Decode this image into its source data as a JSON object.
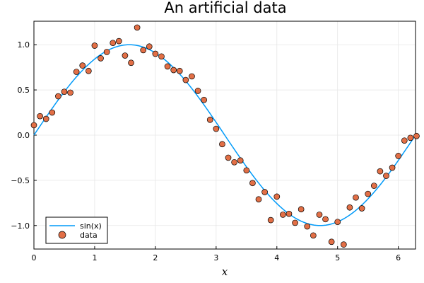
{
  "chart_data": {
    "type": "scatter",
    "title": "An artificial data",
    "xlabel": "x",
    "ylabel": "",
    "xlim": [
      0,
      6.283
    ],
    "ylim": [
      -1.26,
      1.26
    ],
    "xticks": [
      0,
      1,
      2,
      3,
      4,
      5,
      6
    ],
    "yticks": [
      -1.0,
      -0.5,
      0.0,
      0.5,
      1.0
    ],
    "xtick_labels": [
      "0",
      "1",
      "2",
      "3",
      "4",
      "5",
      "6"
    ],
    "ytick_labels": [
      "−1.0",
      "−0.5",
      "0.0",
      "0.5",
      "1.0"
    ],
    "grid": true,
    "legend_position": "bottom-left",
    "series": [
      {
        "name": "sin(x)",
        "kind": "line",
        "color": "#009af9",
        "function": "sin"
      },
      {
        "name": "data",
        "kind": "scatter",
        "color": "#e26f46",
        "x": [
          0.0,
          0.1,
          0.2,
          0.3,
          0.4,
          0.5,
          0.6,
          0.7,
          0.8,
          0.9,
          1.0,
          1.1,
          1.2,
          1.3,
          1.4,
          1.5,
          1.6,
          1.7,
          1.8,
          1.9,
          2.0,
          2.1,
          2.2,
          2.3,
          2.4,
          2.5,
          2.6,
          2.7,
          2.8,
          2.9,
          3.0,
          3.1,
          3.2,
          3.3,
          3.4,
          3.5,
          3.6,
          3.7,
          3.8,
          3.9,
          4.0,
          4.1,
          4.2,
          4.3,
          4.4,
          4.5,
          4.6,
          4.7,
          4.8,
          4.9,
          5.0,
          5.1,
          5.2,
          5.3,
          5.4,
          5.5,
          5.6,
          5.7,
          5.8,
          5.9,
          6.0,
          6.1,
          6.2,
          6.3
        ],
        "y": [
          0.11,
          0.21,
          0.18,
          0.25,
          0.43,
          0.48,
          0.47,
          0.7,
          0.77,
          0.71,
          0.99,
          0.85,
          0.92,
          1.02,
          1.04,
          0.88,
          0.8,
          1.19,
          0.94,
          0.98,
          0.9,
          0.87,
          0.76,
          0.72,
          0.71,
          0.61,
          0.65,
          0.49,
          0.39,
          0.17,
          0.07,
          -0.1,
          -0.25,
          -0.3,
          -0.28,
          -0.39,
          -0.53,
          -0.71,
          -0.63,
          -0.94,
          -0.68,
          -0.88,
          -0.87,
          -0.97,
          -0.82,
          -1.01,
          -1.11,
          -0.88,
          -0.93,
          -1.18,
          -0.96,
          -1.21,
          -0.8,
          -0.69,
          -0.81,
          -0.65,
          -0.56,
          -0.4,
          -0.45,
          -0.36,
          -0.23,
          -0.06,
          -0.03,
          -0.01
        ]
      }
    ]
  }
}
